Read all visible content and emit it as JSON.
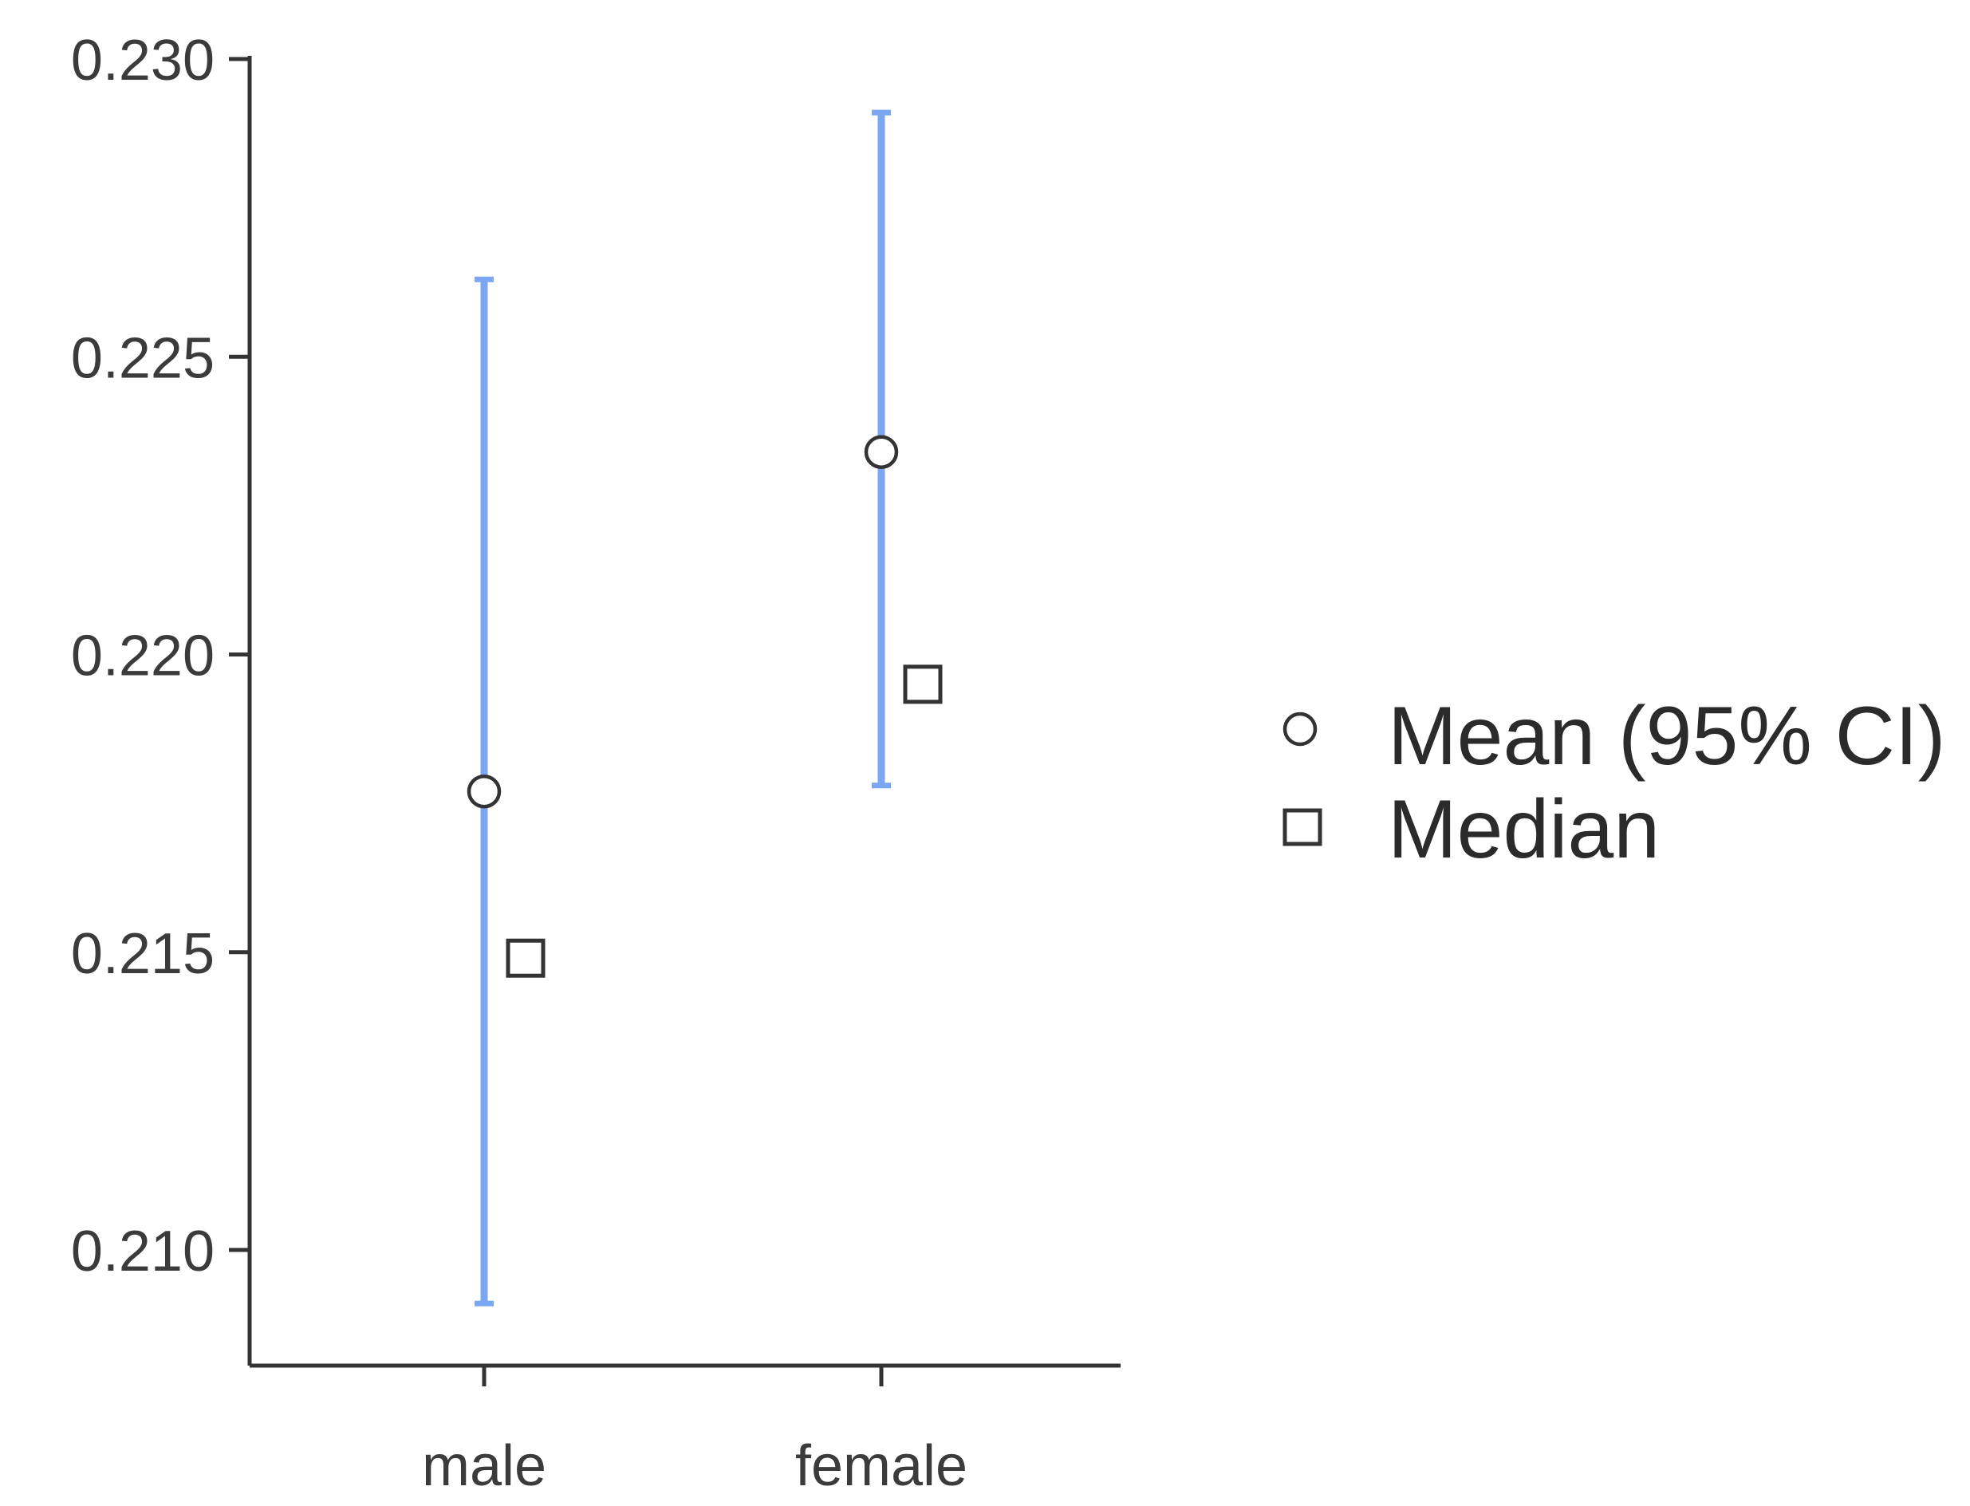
{
  "chart_data": {
    "type": "scatter",
    "title": "",
    "xlabel": "",
    "ylabel": "",
    "categories": [
      "male",
      "female"
    ],
    "ylim": [
      0.208,
      0.23
    ],
    "yticks": [
      "0.210",
      "0.215",
      "0.220",
      "0.225",
      "0.230"
    ],
    "grid": false,
    "legend_position": "right",
    "ci_color": "#7aa6f2",
    "series": [
      {
        "name": "Mean (95% CI)",
        "marker": "circle",
        "values": [
          0.2177,
          0.2234
        ],
        "ci_low": [
          0.2091,
          0.2178
        ],
        "ci_high": [
          0.2263,
          0.2291
        ]
      },
      {
        "name": "Median",
        "marker": "square",
        "values": [
          0.2149,
          0.2195
        ]
      }
    ]
  }
}
